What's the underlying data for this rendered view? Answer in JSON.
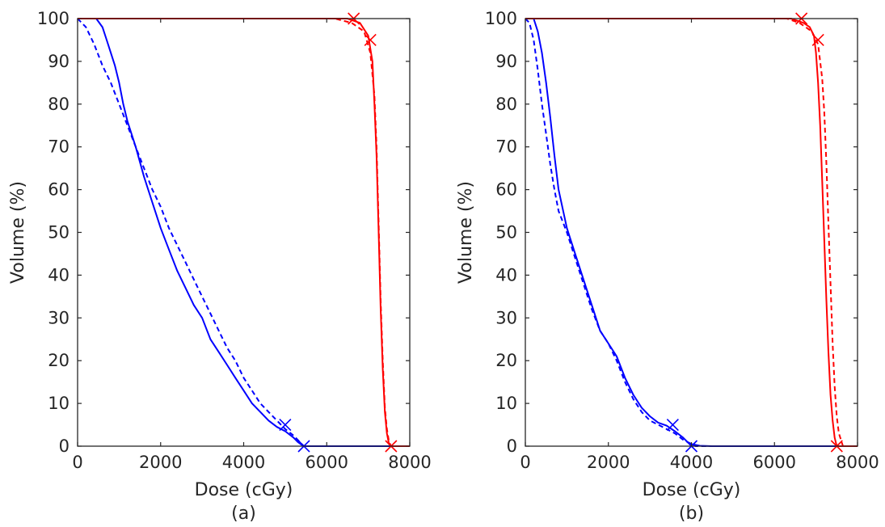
{
  "colors": {
    "blue": "#0000ff",
    "red": "#ff0000",
    "axis": "#262626"
  },
  "chart_data": [
    {
      "type": "line",
      "panel_label": "(a)",
      "xlabel": "Dose (cGy)",
      "ylabel": "Volume (%)",
      "xlim": [
        0,
        8000
      ],
      "ylim": [
        0,
        100
      ],
      "xticks": [
        0,
        2000,
        4000,
        6000,
        8000
      ],
      "yticks": [
        0,
        10,
        20,
        30,
        40,
        50,
        60,
        70,
        80,
        90,
        100
      ],
      "grid": false,
      "series": [
        {
          "color": "blue",
          "style": "solid",
          "x": [
            0,
            450,
            600,
            700,
            800,
            900,
            1000,
            1100,
            1200,
            1400,
            1600,
            1800,
            2000,
            2200,
            2400,
            2600,
            2800,
            3000,
            3200,
            3400,
            3600,
            3800,
            4000,
            4200,
            4400,
            4600,
            4800,
            5000,
            5200,
            5300,
            5400,
            5450,
            8000
          ],
          "y": [
            100,
            100,
            98,
            95,
            92,
            89,
            85,
            80,
            76,
            70,
            63,
            57,
            51,
            46,
            41,
            37,
            33,
            30,
            25,
            22,
            19,
            16,
            13,
            10,
            8,
            6,
            4.5,
            3.5,
            2,
            1,
            0.3,
            0,
            0
          ]
        },
        {
          "color": "blue",
          "style": "dashed",
          "x": [
            0,
            200,
            400,
            600,
            800,
            1000,
            1200,
            1400,
            1600,
            1800,
            2000,
            2200,
            2400,
            2600,
            2800,
            3000,
            3200,
            3400,
            3600,
            3800,
            4000,
            4200,
            4400,
            4600,
            4800,
            5000,
            5200,
            5400,
            5450,
            8000
          ],
          "y": [
            100,
            98,
            94,
            89,
            85,
            80,
            75,
            70,
            65,
            60,
            56,
            51,
            47,
            43,
            39,
            35,
            31,
            27,
            23,
            20,
            16,
            13,
            10,
            8,
            6,
            4,
            2.5,
            0.5,
            0,
            0
          ]
        },
        {
          "color": "red",
          "style": "solid",
          "x": [
            0,
            6500,
            6800,
            7000,
            7100,
            7150,
            7200,
            7250,
            7300,
            7350,
            7400,
            7450,
            7500,
            7550,
            8000
          ],
          "y": [
            100,
            100,
            99,
            96,
            90,
            80,
            68,
            50,
            32,
            18,
            8,
            3,
            0.5,
            0,
            0
          ]
        },
        {
          "color": "red",
          "style": "dashed",
          "x": [
            0,
            6200,
            6600,
            6900,
            7050,
            7150,
            7200,
            7250,
            7300,
            7350,
            7400,
            7450,
            7500,
            7550,
            8000
          ],
          "y": [
            100,
            100,
            99,
            97,
            92,
            82,
            70,
            52,
            34,
            20,
            9,
            4,
            1,
            0,
            0
          ]
        }
      ],
      "markers": [
        {
          "color": "blue",
          "x": 5000,
          "y": 5
        },
        {
          "color": "blue",
          "x": 5450,
          "y": 0
        },
        {
          "color": "red",
          "x": 6650,
          "y": 100
        },
        {
          "color": "red",
          "x": 7050,
          "y": 95
        },
        {
          "color": "red",
          "x": 7550,
          "y": 0
        }
      ]
    },
    {
      "type": "line",
      "panel_label": "(b)",
      "xlabel": "Dose (cGy)",
      "ylabel": "Volume (%)",
      "xlim": [
        0,
        8000
      ],
      "ylim": [
        0,
        100
      ],
      "xticks": [
        0,
        2000,
        4000,
        6000,
        8000
      ],
      "yticks": [
        0,
        10,
        20,
        30,
        40,
        50,
        60,
        70,
        80,
        90,
        100
      ],
      "grid": false,
      "series": [
        {
          "color": "blue",
          "style": "solid",
          "x": [
            0,
            200,
            300,
            400,
            500,
            600,
            700,
            800,
            1000,
            1200,
            1400,
            1600,
            1800,
            2000,
            2200,
            2400,
            2600,
            2800,
            3000,
            3200,
            3400,
            3600,
            3800,
            3900,
            4000,
            4200,
            4500,
            8000
          ],
          "y": [
            100,
            100,
            97,
            92,
            85,
            77,
            68,
            60,
            51,
            45,
            39,
            33,
            27,
            24,
            21,
            16,
            12,
            9,
            7,
            5.5,
            4.8,
            3.5,
            2,
            1,
            0.5,
            0.1,
            0,
            0
          ]
        },
        {
          "color": "blue",
          "style": "dashed",
          "x": [
            0,
            100,
            200,
            300,
            400,
            500,
            600,
            700,
            800,
            1000,
            1200,
            1400,
            1600,
            1800,
            2000,
            2200,
            2400,
            2600,
            2800,
            3000,
            3200,
            3400,
            3600,
            3800,
            4000,
            4100,
            8000
          ],
          "y": [
            100,
            99,
            95,
            88,
            80,
            73,
            66,
            60,
            55,
            50,
            44,
            38,
            32,
            27,
            24,
            20,
            15,
            11,
            8,
            6,
            5,
            4,
            3,
            1.5,
            0.5,
            0,
            0
          ]
        },
        {
          "color": "red",
          "style": "solid",
          "x": [
            0,
            6400,
            6700,
            6850,
            6950,
            7000,
            7050,
            7100,
            7150,
            7200,
            7250,
            7300,
            7350,
            7400,
            7450,
            7500,
            8000
          ],
          "y": [
            100,
            100,
            99,
            98,
            96,
            92,
            85,
            75,
            62,
            48,
            34,
            22,
            12,
            6,
            2,
            0,
            0
          ]
        },
        {
          "color": "red",
          "style": "dashed",
          "x": [
            0,
            6300,
            6600,
            6900,
            7050,
            7150,
            7200,
            7250,
            7300,
            7350,
            7400,
            7450,
            7500,
            7550,
            7600,
            7650,
            8000
          ],
          "y": [
            100,
            100,
            99,
            97,
            94,
            86,
            78,
            66,
            52,
            38,
            24,
            14,
            7,
            3,
            1.5,
            0,
            0
          ]
        }
      ],
      "markers": [
        {
          "color": "blue",
          "x": 3550,
          "y": 5
        },
        {
          "color": "blue",
          "x": 4000,
          "y": 0
        },
        {
          "color": "red",
          "x": 6650,
          "y": 100
        },
        {
          "color": "red",
          "x": 7050,
          "y": 95
        },
        {
          "color": "red",
          "x": 7500,
          "y": 0
        }
      ]
    }
  ]
}
